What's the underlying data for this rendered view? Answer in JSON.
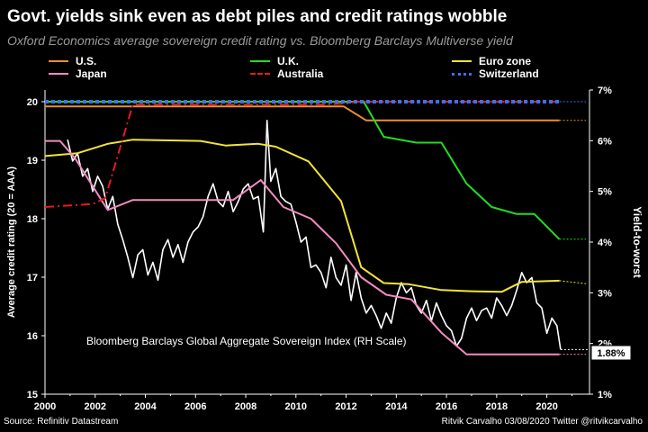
{
  "chart_data": {
    "type": "line",
    "title": "Govt. yields sink even as debt piles and credit ratings wobble",
    "subtitle": "Oxford Economics average sovereign credit rating vs. Bloomberg Barclays Multiverse yield",
    "ylabel_left": "Average credit rating (20 = AAA)",
    "ylabel_right": "Yield-to-worst",
    "xlim": [
      2000,
      2021.7
    ],
    "ylim_left": [
      15,
      20.2
    ],
    "ylim_right": [
      1,
      7
    ],
    "x_ticks": [
      "2000",
      "2002",
      "2004",
      "2006",
      "2008",
      "2010",
      "2012",
      "2014",
      "2016",
      "2018",
      "2020"
    ],
    "y_left_ticks": [
      "15",
      "16",
      "17",
      "18",
      "19",
      "20"
    ],
    "y_right_ticks": [
      "1%",
      "2%",
      "3%",
      "4%",
      "5%",
      "6%",
      "7%"
    ],
    "annotation": "Bloomberg Barclays Global Aggregate Sovereign Index (RH Scale)",
    "last_value_label": "1.88%",
    "series": [
      {
        "name": "U.S.",
        "color": "#e8902e",
        "style": "solid",
        "axis": "left",
        "x": [
          2000,
          2011.9,
          2012.8,
          2020.5
        ],
        "y": [
          19.92,
          19.92,
          19.68,
          19.68
        ]
      },
      {
        "name": "U.K.",
        "color": "#22dd22",
        "style": "solid",
        "axis": "left",
        "x": [
          2000,
          2012.7,
          2013.5,
          2014.8,
          2015.8,
          2016.8,
          2017.8,
          2018.8,
          2019.5,
          2020.5
        ],
        "y": [
          20,
          20,
          19.4,
          19.3,
          19.3,
          18.6,
          18.2,
          18.08,
          18.08,
          17.65
        ]
      },
      {
        "name": "Euro zone",
        "color": "#f1e534",
        "style": "solid",
        "axis": "left",
        "x": [
          2000,
          2001.3,
          2002.5,
          2003.5,
          2006.2,
          2007.2,
          2008.5,
          2009.2,
          2010.5,
          2011.8,
          2012.6,
          2013.5,
          2014.5,
          2015.8,
          2017,
          2018.2,
          2019,
          2020.5
        ],
        "y": [
          19.07,
          19.12,
          19.28,
          19.35,
          19.33,
          19.25,
          19.28,
          19.23,
          18.98,
          18.3,
          17.17,
          16.9,
          16.88,
          16.78,
          16.76,
          16.75,
          16.92,
          16.94
        ]
      },
      {
        "name": "Japan",
        "color": "#f08cc0",
        "style": "solid",
        "axis": "left",
        "x": [
          2000,
          2000.6,
          2001.2,
          2002.5,
          2003.5,
          2007.5,
          2008.6,
          2009.5,
          2010.6,
          2011.6,
          2012.6,
          2013.6,
          2014.6,
          2015.8,
          2016.8,
          2020.5
        ],
        "y": [
          19.33,
          19.33,
          19.03,
          18.15,
          18.32,
          18.32,
          18.66,
          18.2,
          18.0,
          17.58,
          17.0,
          16.7,
          16.62,
          16.05,
          15.68,
          15.68
        ]
      },
      {
        "name": "Australia",
        "color": "#e81c1c",
        "style": "dashdot",
        "axis": "left",
        "x": [
          2000,
          2001.9,
          2002.4,
          2003.5,
          2011,
          2012,
          2012.4,
          2020.5
        ],
        "y": [
          18.2,
          18.25,
          18.35,
          19.95,
          19.95,
          19.97,
          20,
          20
        ]
      },
      {
        "name": "Switzerland",
        "color": "#3f6ff0",
        "style": "dotted",
        "axis": "left",
        "x": [
          2000,
          2020.5
        ],
        "y": [
          20,
          20
        ]
      },
      {
        "name": "Bloomberg Barclays Global Aggregate Sovereign Index",
        "color": "#ffffff",
        "style": "solid",
        "axis": "right",
        "x": [
          2000.9,
          2001.1,
          2001.3,
          2001.5,
          2001.7,
          2001.9,
          2002.1,
          2002.3,
          2002.5,
          2002.7,
          2002.9,
          2003.1,
          2003.3,
          2003.5,
          2003.7,
          2003.9,
          2004.1,
          2004.3,
          2004.5,
          2004.7,
          2004.9,
          2005.1,
          2005.3,
          2005.5,
          2005.7,
          2005.9,
          2006.1,
          2006.3,
          2006.5,
          2006.7,
          2006.9,
          2007.1,
          2007.3,
          2007.5,
          2007.7,
          2007.9,
          2008.1,
          2008.3,
          2008.5,
          2008.7,
          2008.85,
          2009.0,
          2009.2,
          2009.4,
          2009.6,
          2009.8,
          2010.0,
          2010.2,
          2010.4,
          2010.6,
          2010.8,
          2011.0,
          2011.2,
          2011.4,
          2011.6,
          2011.8,
          2012.0,
          2012.2,
          2012.4,
          2012.6,
          2012.8,
          2013.0,
          2013.2,
          2013.4,
          2013.6,
          2013.8,
          2014.0,
          2014.2,
          2014.4,
          2014.6,
          2014.8,
          2015.0,
          2015.2,
          2015.4,
          2015.6,
          2015.8,
          2016.0,
          2016.2,
          2016.4,
          2016.6,
          2016.8,
          2017.0,
          2017.2,
          2017.4,
          2017.6,
          2017.8,
          2018.0,
          2018.2,
          2018.4,
          2018.6,
          2018.8,
          2019.0,
          2019.2,
          2019.4,
          2019.6,
          2019.8,
          2020.0,
          2020.2,
          2020.4,
          2020.55
        ],
        "y": [
          6.02,
          5.6,
          5.75,
          5.3,
          5.45,
          5.0,
          5.3,
          5.1,
          4.65,
          4.9,
          4.35,
          4.05,
          3.7,
          3.3,
          3.75,
          3.85,
          3.35,
          3.6,
          3.25,
          3.85,
          4.05,
          3.7,
          3.95,
          3.6,
          4.0,
          4.2,
          4.3,
          4.5,
          4.9,
          5.15,
          4.8,
          4.7,
          5.0,
          4.6,
          4.8,
          5.05,
          5.15,
          4.85,
          4.9,
          4.2,
          6.4,
          5.2,
          5.45,
          4.9,
          4.8,
          4.75,
          4.4,
          4.0,
          4.1,
          3.5,
          3.55,
          3.4,
          3.1,
          3.7,
          3.3,
          3.15,
          3.55,
          2.85,
          3.4,
          2.9,
          2.6,
          2.75,
          2.55,
          2.3,
          2.6,
          2.4,
          2.9,
          3.2,
          3.0,
          3.1,
          2.75,
          2.6,
          2.85,
          2.45,
          2.8,
          2.55,
          2.35,
          2.25,
          1.95,
          2.1,
          2.5,
          2.7,
          2.45,
          2.65,
          2.7,
          2.5,
          2.9,
          2.75,
          2.55,
          2.75,
          3.05,
          3.4,
          3.2,
          3.3,
          2.8,
          2.7,
          2.2,
          2.5,
          2.35,
          1.88
        ]
      }
    ]
  },
  "footer": {
    "source": "Source: Refinitiv Datastream",
    "credit": "Ritvik Carvalho 03/08/2020 Twitter @ritvikcarvalho"
  }
}
